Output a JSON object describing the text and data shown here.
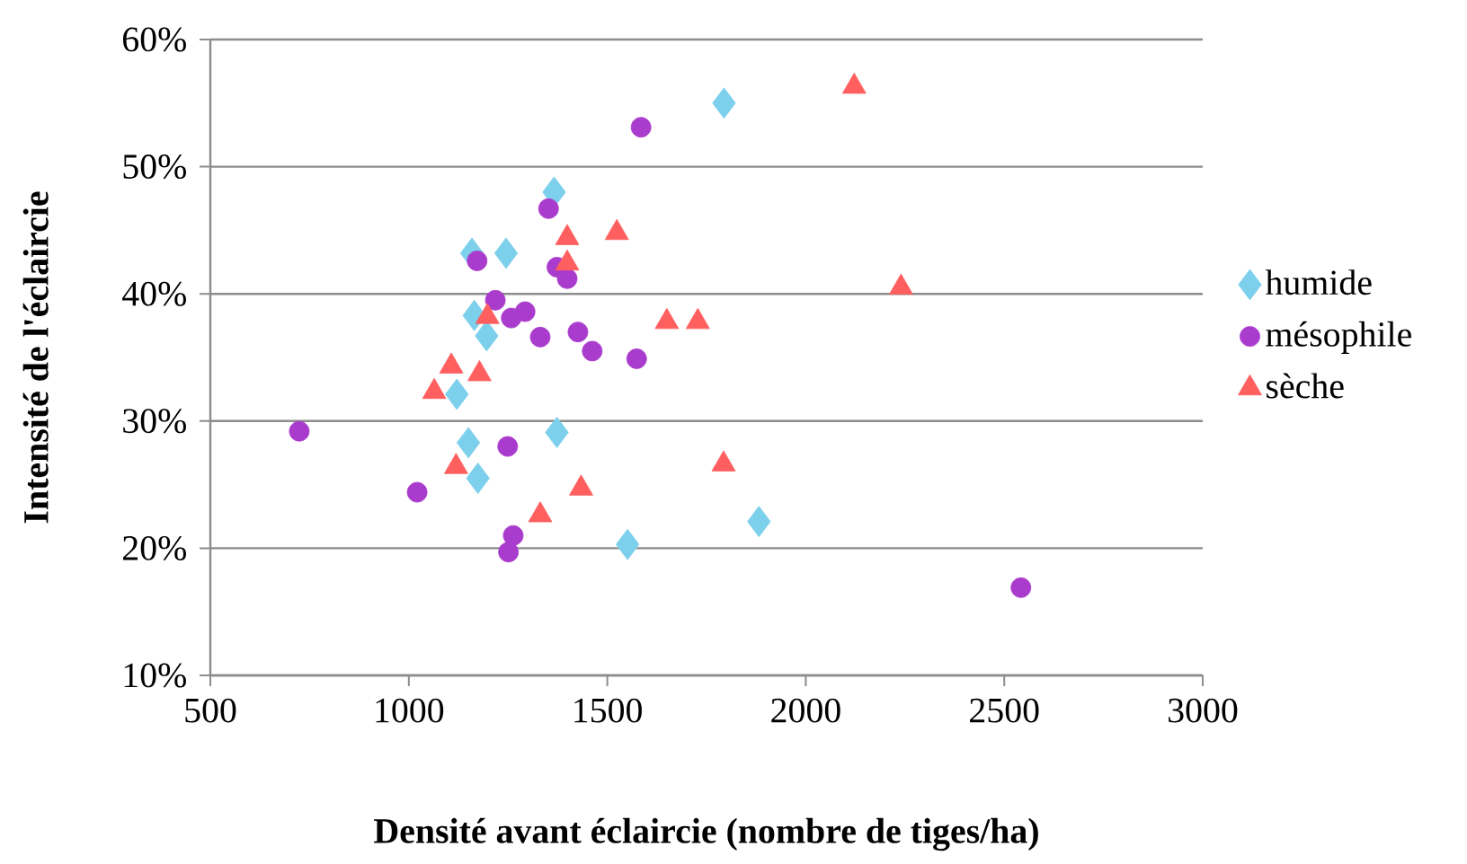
{
  "chart_data": {
    "type": "scatter",
    "xlabel": "Densité avant éclaircie (nombre de tiges/ha)",
    "ylabel": "Intensité de l'éclaircie",
    "xlim": [
      500,
      3000
    ],
    "xticks": [
      500,
      1000,
      1500,
      2000,
      2500,
      3000
    ],
    "ylim": [
      10,
      60
    ],
    "yticks": [
      {
        "value": 10,
        "label": "10%"
      },
      {
        "value": 20,
        "label": "20%"
      },
      {
        "value": 30,
        "label": "30%"
      },
      {
        "value": 40,
        "label": "40%"
      },
      {
        "value": 50,
        "label": "50%"
      },
      {
        "value": 60,
        "label": "60%"
      }
    ],
    "grid": "y",
    "legend": "right",
    "series": [
      {
        "name": "humide",
        "color": "#7dd0ec",
        "marker": "diamond",
        "x": [
          1794,
          1366,
          1159,
          1245,
          1165,
          1196,
          1121,
          1150,
          1373,
          1174,
          1551,
          1882
        ],
        "values": [
          55.0,
          48.0,
          43.2,
          43.2,
          38.3,
          36.7,
          32.1,
          28.3,
          29.1,
          25.5,
          20.3,
          22.1
        ]
      },
      {
        "name": "mésophile",
        "color": "#a93bcd",
        "marker": "circle",
        "x": [
          1585,
          1352,
          1172,
          1373,
          1399,
          1218,
          1293,
          1258,
          1331,
          1426,
          1462,
          1574,
          724,
          1249,
          1021,
          1263,
          1251,
          2542
        ],
        "values": [
          53.1,
          46.7,
          42.6,
          42.1,
          41.2,
          39.5,
          38.6,
          38.1,
          36.6,
          37.0,
          35.5,
          34.9,
          29.2,
          28.0,
          24.4,
          21.0,
          19.7,
          16.9
        ]
      },
      {
        "name": "sèche",
        "color": "#ff5f5f",
        "marker": "triangle",
        "x": [
          1524,
          1399,
          1399,
          1198,
          1107,
          1178,
          1064,
          2122,
          2240,
          1650,
          1728,
          1119,
          1434,
          1331,
          1793
        ],
        "values": [
          44.8,
          44.4,
          42.4,
          38.2,
          34.3,
          33.7,
          32.3,
          56.3,
          40.5,
          37.8,
          37.8,
          26.4,
          24.7,
          22.6,
          26.6
        ]
      }
    ]
  }
}
